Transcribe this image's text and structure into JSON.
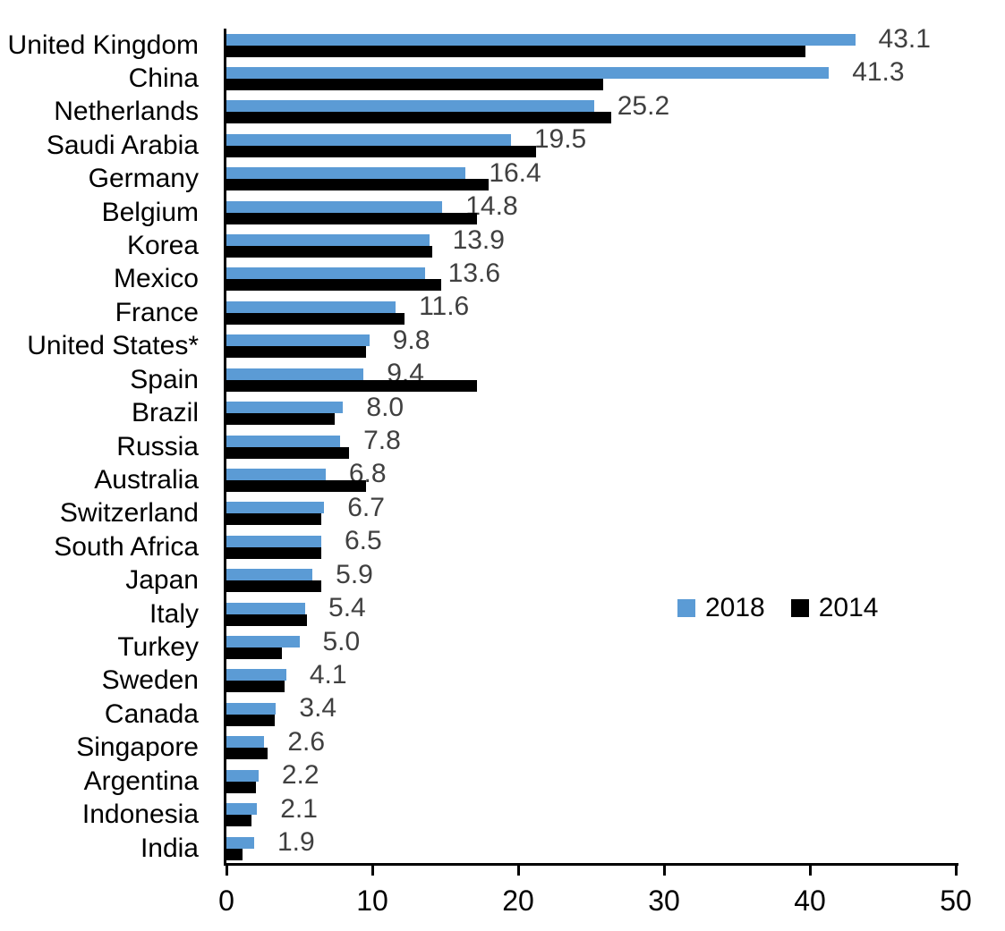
{
  "chart_data": {
    "type": "bar",
    "orientation": "horizontal",
    "title": "",
    "xlabel": "",
    "ylabel": "",
    "xlim": [
      0,
      50
    ],
    "x_ticks": [
      0,
      10,
      20,
      30,
      40,
      50
    ],
    "grid": false,
    "legend_position": "middle-right",
    "categories": [
      "United Kingdom",
      "China",
      "Netherlands",
      "Saudi Arabia",
      "Germany",
      "Belgium",
      "Korea",
      "Mexico",
      "France",
      "United States*",
      "Spain",
      "Brazil",
      "Russia",
      "Australia",
      "Switzerland",
      "South Africa",
      "Japan",
      "Italy",
      "Turkey",
      "Sweden",
      "Canada",
      "Singapore",
      "Argentina",
      "Indonesia",
      "India"
    ],
    "series": [
      {
        "name": "2018",
        "color": "#5B9BD5",
        "values": [
          43.1,
          41.3,
          25.2,
          19.5,
          16.4,
          14.8,
          13.9,
          13.6,
          11.6,
          9.8,
          9.4,
          8.0,
          7.8,
          6.8,
          6.7,
          6.5,
          5.9,
          5.4,
          5.0,
          4.1,
          3.4,
          2.6,
          2.2,
          2.1,
          1.9
        ],
        "data_labels": [
          "43.1",
          "41.3",
          "25.2",
          "19.5",
          "16.4",
          "14.8",
          "13.9",
          "13.6",
          "11.6",
          "9.8",
          "9.4",
          "8.0",
          "7.8",
          "6.8",
          "6.7",
          "6.5",
          "5.9",
          "5.4",
          "5.0",
          "4.1",
          "3.4",
          "2.6",
          "2.2",
          "2.1",
          "1.9"
        ]
      },
      {
        "name": "2014",
        "color": "#000000",
        "values": [
          39.7,
          25.8,
          26.4,
          21.2,
          18.0,
          17.2,
          14.1,
          14.7,
          12.2,
          9.6,
          17.2,
          7.4,
          8.4,
          9.6,
          6.5,
          6.5,
          6.5,
          5.5,
          3.8,
          4.0,
          3.3,
          2.8,
          2.0,
          1.7,
          1.1
        ],
        "data_labels": []
      }
    ]
  },
  "legend": {
    "items": [
      {
        "label": "2018",
        "color": "#5B9BD5"
      },
      {
        "label": "2014",
        "color": "#000000"
      }
    ]
  },
  "colors": {
    "bar_2018": "#5B9BD5",
    "bar_2014": "#000000",
    "data_label_text": "#404040",
    "axis": "#000000",
    "background": "#FFFFFF"
  }
}
